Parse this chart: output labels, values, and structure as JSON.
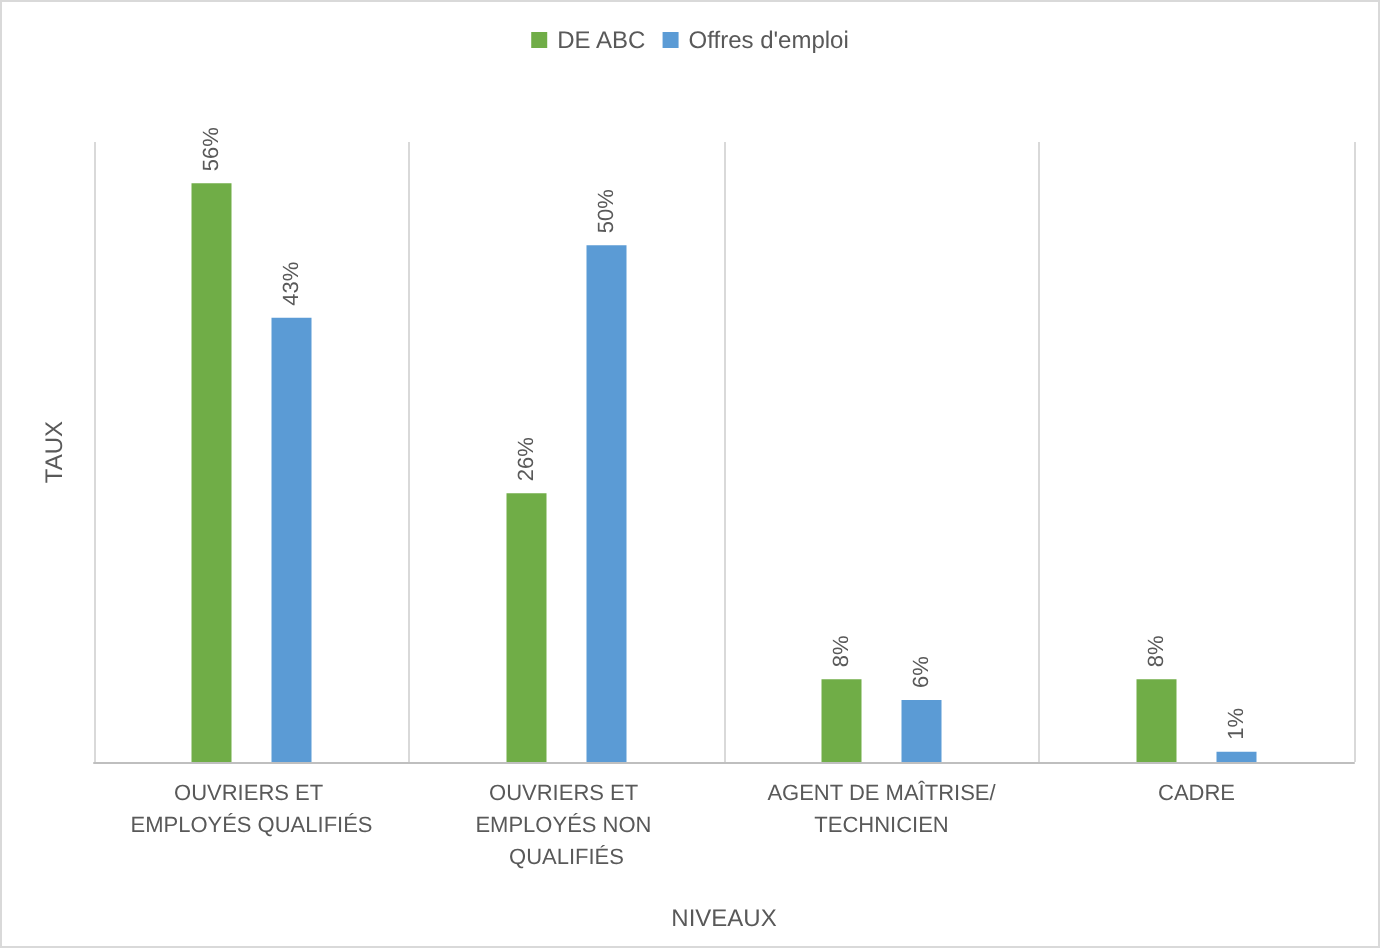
{
  "chart_data": {
    "type": "bar",
    "xlabel": "NIVEAUX",
    "ylabel": "TAUX",
    "categories": [
      "OUVRIERS ET EMPLOYÉS QUALIFIÉS",
      "OUVRIERS ET EMPLOYÉS NON QUALIFIÉS",
      "AGENT DE MAÎTRISE/TECHNICIEN",
      "CADRE"
    ],
    "series": [
      {
        "name": "DE ABC",
        "color": "#70ad47",
        "values": [
          56,
          26,
          8,
          8
        ],
        "value_labels": [
          "56%",
          "26%",
          "8%",
          "8%"
        ]
      },
      {
        "name": "Offres d'emploi",
        "color": "#5b9bd5",
        "values": [
          43,
          50,
          6,
          1
        ],
        "value_labels": [
          "43%",
          "50%",
          "6%",
          "1%"
        ]
      }
    ],
    "grid": "x",
    "legend": "top"
  }
}
